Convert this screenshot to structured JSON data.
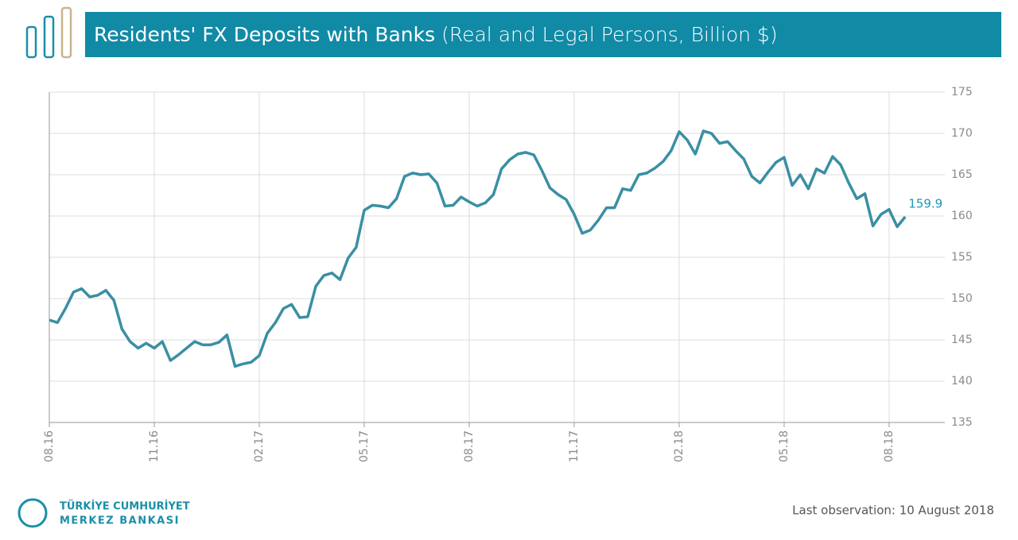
{
  "chart_data": {
    "type": "line",
    "title": "Residents' FX Deposits with Banks",
    "subtitle": "(Real and Legal Persons, Billion $)",
    "categories": [
      "08.16",
      null,
      null,
      null,
      null,
      null,
      null,
      null,
      null,
      null,
      null,
      null,
      null,
      "11.16",
      null,
      null,
      null,
      null,
      null,
      null,
      null,
      null,
      null,
      null,
      null,
      null,
      "02.17",
      null,
      null,
      null,
      null,
      null,
      null,
      null,
      null,
      null,
      null,
      null,
      null,
      "05.17",
      null,
      null,
      null,
      null,
      null,
      null,
      null,
      null,
      null,
      null,
      null,
      null,
      "08.17",
      null,
      null,
      null,
      null,
      null,
      null,
      null,
      null,
      null,
      null,
      null,
      null,
      "11.17",
      null,
      null,
      null,
      null,
      null,
      null,
      null,
      null,
      null,
      null,
      null,
      null,
      "02.18",
      null,
      null,
      null,
      null,
      null,
      null,
      null,
      null,
      null,
      null,
      null,
      null,
      "05.18",
      null,
      null,
      null,
      null,
      null,
      null,
      null,
      null,
      null,
      null,
      null,
      null,
      "08.18",
      null,
      null
    ],
    "values": [
      147.4,
      147.1,
      148.8,
      150.8,
      151.2,
      150.2,
      150.4,
      151,
      149.8,
      146.3,
      144.8,
      144,
      144.6,
      144,
      144.8,
      142.5,
      143.2,
      144,
      144.8,
      144.4,
      144.4,
      144.7,
      145.6,
      141.8,
      142.1,
      142.3,
      143.1,
      145.8,
      147.1,
      148.8,
      149.3,
      147.7,
      147.8,
      151.5,
      152.8,
      153.1,
      152.3,
      154.9,
      156.2,
      160.7,
      161.3,
      161.2,
      161,
      162.1,
      164.8,
      165.2,
      165,
      165.1,
      164,
      161.2,
      161.3,
      162.3,
      161.7,
      161.2,
      161.6,
      162.6,
      165.7,
      166.8,
      167.5,
      167.7,
      167.4,
      165.5,
      163.4,
      162.6,
      162,
      160.2,
      157.9,
      158.3,
      159.5,
      161,
      161,
      163.3,
      163.1,
      165,
      165.2,
      165.8,
      166.6,
      167.9,
      170.2,
      169.2,
      167.5,
      170.3,
      170,
      168.8,
      169,
      167.9,
      166.9,
      164.8,
      164,
      165.3,
      166.5,
      167.1,
      163.7,
      165,
      163.3,
      165.7,
      165.2,
      167.2,
      166.2,
      164,
      162.1,
      162.7,
      158.8,
      160.2,
      160.8,
      158.7,
      159.9
    ],
    "color": "#3a8fa3",
    "ylim": [
      135,
      175
    ],
    "yticks": [
      135,
      140,
      145,
      150,
      155,
      160,
      165,
      170,
      175
    ],
    "grid": true
  },
  "logo": {
    "line1": "TÜRKİYE CUMHURİYET",
    "line2": "MERKEZ BANKASI"
  },
  "footnote": "Last observation: 10 August 2018"
}
